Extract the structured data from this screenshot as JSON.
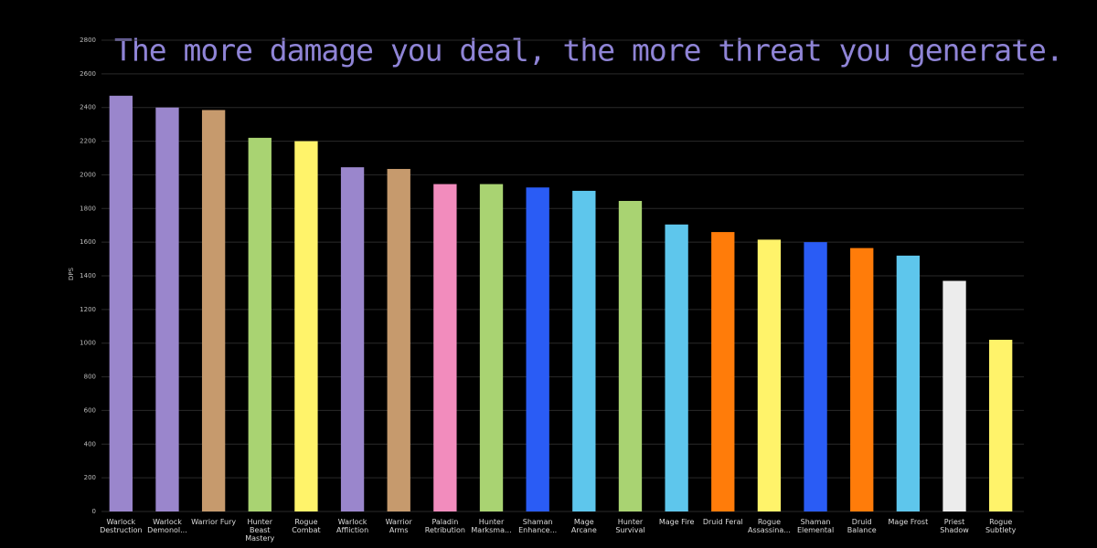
{
  "chart_data": {
    "type": "bar",
    "title": "The more damage you deal, the more threat you generate.",
    "y_label": "DPS",
    "categories": [
      "Warlock Destruction",
      "Warlock Demonol...",
      "Warrior Fury",
      "Hunter Beast Mastery",
      "Rogue Combat",
      "Warlock Affliction",
      "Warrior Arms",
      "Paladin Retribution",
      "Hunter Marksma...",
      "Shaman Enhance...",
      "Mage Arcane",
      "Hunter Survival",
      "Mage Fire",
      "Druid Feral",
      "Rogue Assassina...",
      "Shaman Elemental",
      "Druid Balance",
      "Mage Frost",
      "Priest Shadow",
      "Rogue Subtlety"
    ],
    "values": [
      2470,
      2400,
      2385,
      2220,
      2200,
      2045,
      2035,
      1945,
      1945,
      1925,
      1905,
      1845,
      1705,
      1660,
      1615,
      1600,
      1565,
      1520,
      1370,
      1020
    ],
    "colors": [
      "#9a86cc",
      "#9a86cc",
      "#c69a6d",
      "#a9d372",
      "#fff36a",
      "#9a86cc",
      "#c69a6d",
      "#f28cbd",
      "#a9d372",
      "#2a5cf5",
      "#5ec6ec",
      "#a9d372",
      "#5ec6ec",
      "#ff7c0a",
      "#fff36a",
      "#2a5cf5",
      "#ff7c0a",
      "#5ec6ec",
      "#ececec",
      "#fff36a"
    ],
    "ylim": [
      0,
      2800
    ],
    "yticks": [
      0,
      200,
      400,
      600,
      800,
      1000,
      1200,
      1400,
      1600,
      1800,
      2000,
      2200,
      2400,
      2600,
      2800
    ],
    "grid": true
  }
}
